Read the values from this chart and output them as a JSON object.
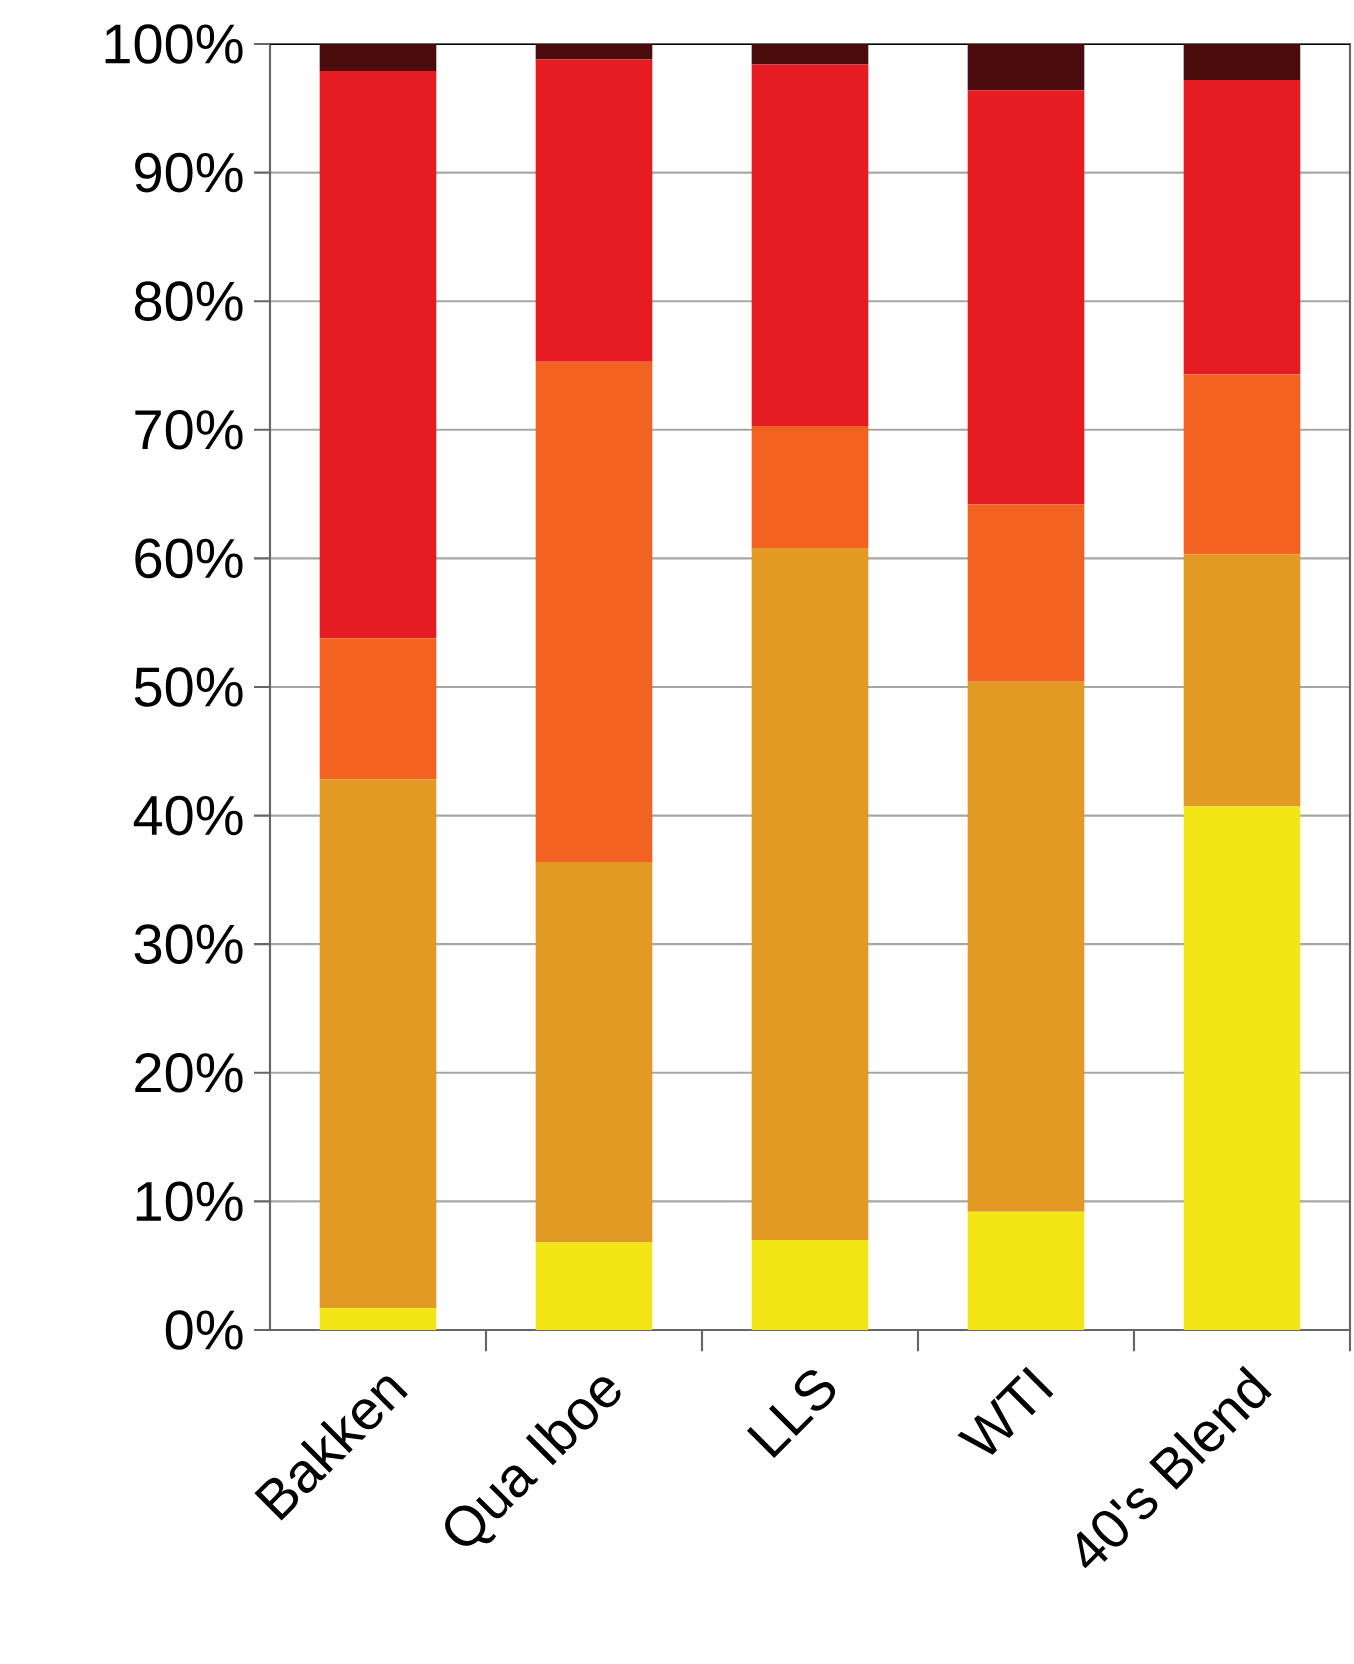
{
  "chart_data": {
    "type": "bar",
    "stacked": true,
    "categories": [
      "Bakken",
      "Qua Iboe",
      "LLS",
      "WTI",
      "40's Blend"
    ],
    "series": [
      {
        "color": "#f2e616",
        "values": [
          1.7,
          6.8,
          7.0,
          9.2,
          40.7
        ]
      },
      {
        "color": "#e39a25",
        "values": [
          41.1,
          29.6,
          53.8,
          41.2,
          19.6
        ]
      },
      {
        "color": "#f26322",
        "values": [
          11.0,
          38.9,
          9.5,
          13.8,
          14.0
        ]
      },
      {
        "color": "#e61c24",
        "values": [
          44.1,
          23.5,
          28.1,
          32.2,
          22.9
        ]
      },
      {
        "color": "#4a0c0c",
        "values": [
          2.1,
          1.2,
          1.6,
          3.6,
          2.8
        ]
      }
    ],
    "ylim": [
      0,
      100
    ],
    "yticks": [
      {
        "value": 0,
        "label": "0%"
      },
      {
        "value": 10,
        "label": "10%"
      },
      {
        "value": 20,
        "label": "20%"
      },
      {
        "value": 30,
        "label": "30%"
      },
      {
        "value": 40,
        "label": "40%"
      },
      {
        "value": 50,
        "label": "50%"
      },
      {
        "value": 60,
        "label": "60%"
      },
      {
        "value": 70,
        "label": "70%"
      },
      {
        "value": 80,
        "label": "80%"
      },
      {
        "value": 90,
        "label": "90%"
      },
      {
        "value": 100,
        "label": "100%"
      }
    ],
    "grid": "y"
  }
}
